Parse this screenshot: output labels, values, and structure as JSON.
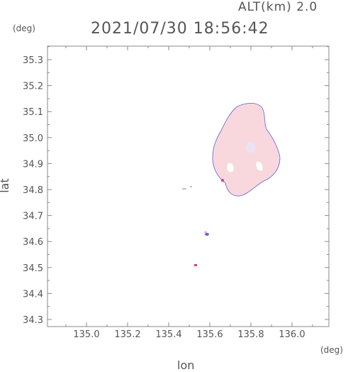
{
  "header": {
    "alt_label": "ALT(km) 2.0",
    "timestamp": "2021/07/30 18:56:42"
  },
  "axes": {
    "x_label": "lon",
    "y_label": "lat",
    "x_unit": "(deg)",
    "y_unit": "(deg)",
    "x_ticks": [
      "135.0",
      "135.2",
      "135.4",
      "135.6",
      "135.8",
      "136.0"
    ],
    "y_ticks": [
      "35.3",
      "35.2",
      "35.1",
      "35.0",
      "34.9",
      "34.8",
      "34.7",
      "34.6",
      "34.5",
      "34.4",
      "34.3"
    ]
  },
  "colors": {
    "echo_fill": "#f8d8dc",
    "echo_edge": "#5050e0",
    "echo_strong": "#e04060",
    "frame": "#888888"
  }
}
